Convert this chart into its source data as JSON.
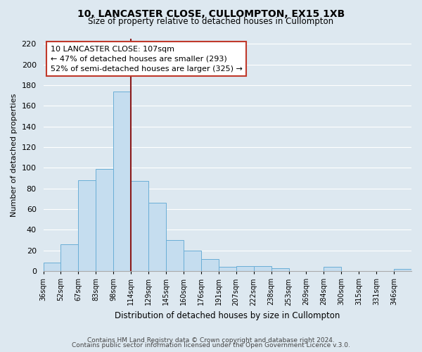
{
  "title": "10, LANCASTER CLOSE, CULLOMPTON, EX15 1XB",
  "subtitle": "Size of property relative to detached houses in Cullompton",
  "xlabel": "Distribution of detached houses by size in Cullompton",
  "ylabel": "Number of detached properties",
  "categories": [
    "36sqm",
    "52sqm",
    "67sqm",
    "83sqm",
    "98sqm",
    "114sqm",
    "129sqm",
    "145sqm",
    "160sqm",
    "176sqm",
    "191sqm",
    "207sqm",
    "222sqm",
    "238sqm",
    "253sqm",
    "269sqm",
    "284sqm",
    "300sqm",
    "315sqm",
    "331sqm",
    "346sqm"
  ],
  "values": [
    8,
    26,
    88,
    99,
    174,
    87,
    66,
    30,
    20,
    12,
    4,
    5,
    5,
    3,
    0,
    0,
    4,
    0,
    0,
    0,
    2
  ],
  "bar_color": "#c5ddef",
  "bar_edge_color": "#6aaed6",
  "vline_x_index": 5,
  "vline_color": "#8b1a1a",
  "annotation_title": "10 LANCASTER CLOSE: 107sqm",
  "annotation_line1": "← 47% of detached houses are smaller (293)",
  "annotation_line2": "52% of semi-detached houses are larger (325) →",
  "annotation_box_edge": "#c0392b",
  "ylim": [
    0,
    225
  ],
  "yticks": [
    0,
    20,
    40,
    60,
    80,
    100,
    120,
    140,
    160,
    180,
    200,
    220
  ],
  "bin_width": 16,
  "footer1": "Contains HM Land Registry data © Crown copyright and database right 2024.",
  "footer2": "Contains public sector information licensed under the Open Government Licence v.3.0.",
  "bg_color": "#dde8f0",
  "plot_bg_color": "#dde8f0",
  "grid_color": "#ffffff"
}
